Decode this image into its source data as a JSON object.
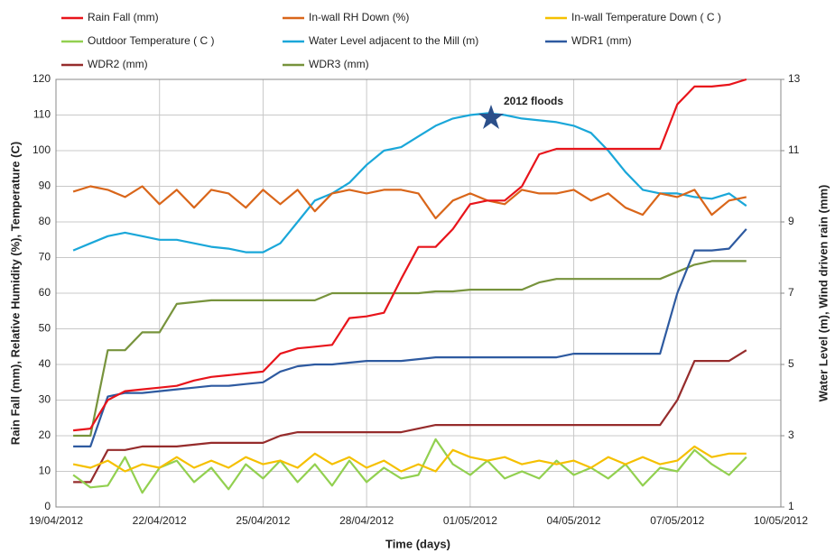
{
  "chart_data": {
    "type": "line",
    "x_label": "Time (days)",
    "y_label": "Rain Fall (mm), Relative Humidity (%), Temperature (C)",
    "y2_label": "Water Level (m), Wind driven rain (mm)",
    "annotation": "2012 floods",
    "xlim": [
      0,
      21
    ],
    "xticks": [
      {
        "value": 0,
        "label": "19/04/2012"
      },
      {
        "value": 3,
        "label": "22/04/2012"
      },
      {
        "value": 6,
        "label": "25/04/2012"
      },
      {
        "value": 9,
        "label": "28/04/2012"
      },
      {
        "value": 12,
        "label": "01/05/2012"
      },
      {
        "value": 15,
        "label": "04/05/2012"
      },
      {
        "value": 18,
        "label": "07/05/2012"
      },
      {
        "value": 21,
        "label": "10/05/2012"
      }
    ],
    "ylim": [
      0,
      120
    ],
    "yticks": [
      0,
      10,
      20,
      30,
      40,
      50,
      60,
      70,
      80,
      90,
      100,
      110,
      120
    ],
    "y2lim": [
      1,
      13
    ],
    "y2ticks": [
      1,
      3,
      5,
      7,
      9,
      11,
      13
    ],
    "grid": true,
    "x": [
      0.5,
      1,
      1.5,
      2,
      2.5,
      3,
      3.5,
      4,
      4.5,
      5,
      5.5,
      6,
      6.5,
      7,
      7.5,
      8,
      8.5,
      9,
      9.5,
      10,
      10.5,
      11,
      11.5,
      12,
      12.5,
      13,
      13.5,
      14,
      14.5,
      15,
      15.5,
      16,
      16.5,
      17,
      17.5,
      18,
      18.5,
      19,
      19.5,
      20
    ],
    "series": [
      {
        "name": "Rain Fall (mm)",
        "color": "#e8141b",
        "values": [
          21.5,
          22,
          30,
          32.5,
          33,
          33.5,
          34,
          35.5,
          36.5,
          37,
          37.5,
          38,
          43,
          44.5,
          45,
          45.5,
          53,
          53.5,
          54.5,
          64,
          73,
          73,
          78,
          85,
          86,
          86,
          90,
          99,
          100.5,
          100.5,
          100.5,
          100.5,
          100.5,
          100.5,
          100.5,
          113,
          118,
          118,
          118.5,
          120
        ]
      },
      {
        "name": "In-wall RH Down (%)",
        "color": "#d9661a",
        "values": [
          88.5,
          90,
          89,
          87,
          90,
          85,
          89,
          84,
          89,
          88,
          84,
          89,
          85,
          89,
          83,
          88,
          89,
          88,
          89,
          89,
          88,
          81,
          86,
          88,
          86,
          85,
          89,
          88,
          88,
          89,
          86,
          88,
          84,
          82,
          88,
          87,
          89,
          82,
          86,
          87
        ]
      },
      {
        "name": "In-wall Temperature Down ( C )",
        "color": "#f5c000",
        "values": [
          12,
          11,
          13,
          10,
          12,
          11,
          14,
          11,
          13,
          11,
          14,
          12,
          13,
          11,
          15,
          12,
          14,
          11,
          13,
          10,
          12,
          10,
          16,
          14,
          13,
          14,
          12,
          13,
          12,
          13,
          11,
          14,
          12,
          14,
          12,
          13,
          17,
          14,
          15,
          15
        ]
      },
      {
        "name": "Outdoor Temperature ( C )",
        "color": "#92d050",
        "values": [
          9,
          5.5,
          6,
          14,
          4,
          11,
          13,
          7,
          11,
          5,
          12,
          8,
          13,
          7,
          12,
          6,
          13,
          7,
          11,
          8,
          9,
          19,
          12,
          9,
          13,
          8,
          10,
          8,
          13,
          9,
          11,
          8,
          12,
          6,
          11,
          10,
          16,
          12,
          9,
          14
        ]
      },
      {
        "name": "Water Level adjacent to the Mill (m)",
        "color": "#1aa7d9",
        "axis": "y2",
        "values": [
          8.2,
          8.4,
          8.6,
          8.7,
          8.6,
          8.5,
          8.5,
          8.4,
          8.3,
          8.25,
          8.15,
          8.15,
          8.4,
          9.0,
          9.6,
          9.8,
          10.1,
          10.6,
          11.0,
          11.1,
          11.4,
          11.7,
          11.9,
          12.0,
          12.05,
          12.0,
          11.9,
          11.85,
          11.8,
          11.7,
          11.5,
          11.0,
          10.4,
          9.9,
          9.8,
          9.8,
          9.7,
          9.65,
          9.8,
          9.45
        ]
      },
      {
        "name": "WDR1 (mm)",
        "color": "#2e5aa0",
        "axis": "y2",
        "values": [
          2.7,
          2.7,
          4.1,
          4.2,
          4.2,
          4.25,
          4.3,
          4.35,
          4.4,
          4.4,
          4.45,
          4.5,
          4.8,
          4.95,
          5.0,
          5.0,
          5.05,
          5.1,
          5.1,
          5.1,
          5.15,
          5.2,
          5.2,
          5.2,
          5.2,
          5.2,
          5.2,
          5.2,
          5.2,
          5.3,
          5.3,
          5.3,
          5.3,
          5.3,
          5.3,
          7.0,
          8.2,
          8.2,
          8.25,
          8.8
        ]
      },
      {
        "name": "WDR2 (mm)",
        "color": "#962c2c",
        "axis": "y2",
        "values": [
          1.7,
          1.7,
          2.6,
          2.6,
          2.7,
          2.7,
          2.7,
          2.75,
          2.8,
          2.8,
          2.8,
          2.8,
          3.0,
          3.1,
          3.1,
          3.1,
          3.1,
          3.1,
          3.1,
          3.1,
          3.2,
          3.3,
          3.3,
          3.3,
          3.3,
          3.3,
          3.3,
          3.3,
          3.3,
          3.3,
          3.3,
          3.3,
          3.3,
          3.3,
          3.3,
          4.0,
          5.1,
          5.1,
          5.1,
          5.4
        ]
      },
      {
        "name": "WDR3 (mm)",
        "color": "#77933c",
        "axis": "y2",
        "values": [
          3.0,
          3.0,
          5.4,
          5.4,
          5.9,
          5.9,
          6.7,
          6.75,
          6.8,
          6.8,
          6.8,
          6.8,
          6.8,
          6.8,
          6.8,
          7.0,
          7.0,
          7.0,
          7.0,
          7.0,
          7.0,
          7.05,
          7.05,
          7.1,
          7.1,
          7.1,
          7.1,
          7.3,
          7.4,
          7.4,
          7.4,
          7.4,
          7.4,
          7.4,
          7.4,
          7.6,
          7.8,
          7.9,
          7.9,
          7.9
        ]
      }
    ]
  }
}
